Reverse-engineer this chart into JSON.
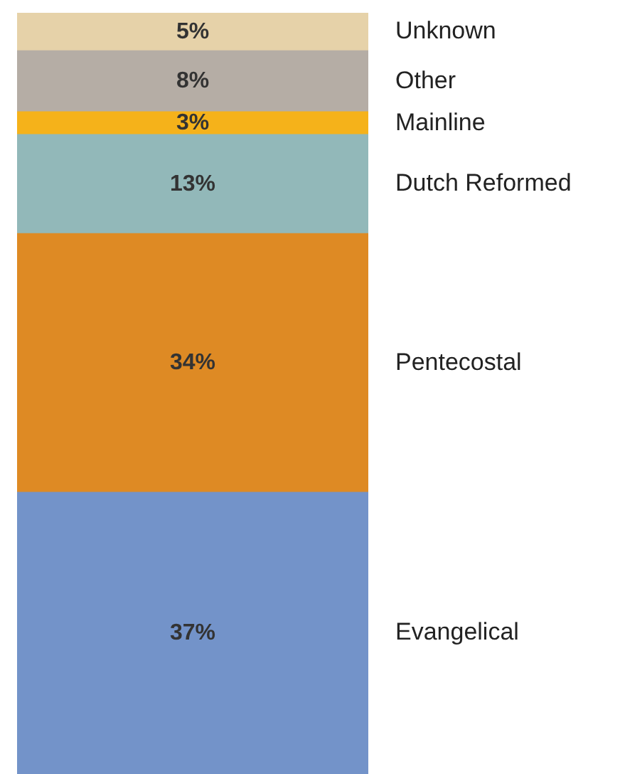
{
  "chart_data": {
    "type": "bar",
    "stacked": true,
    "categories": [
      null
    ],
    "series": [
      {
        "name": "Evangelical",
        "color": "#7393c9",
        "values": [
          37
        ],
        "value_labels": [
          "37%"
        ]
      },
      {
        "name": "Pentecostal",
        "color": "#de8a24",
        "values": [
          34
        ],
        "value_labels": [
          "34%"
        ]
      },
      {
        "name": "Dutch Reformed",
        "color": "#92b8b9",
        "values": [
          13
        ],
        "value_labels": [
          "13%"
        ]
      },
      {
        "name": "Mainline",
        "color": "#f5b21a",
        "values": [
          3
        ],
        "value_labels": [
          "3%"
        ]
      },
      {
        "name": "Other",
        "color": "#b5ada5",
        "values": [
          8
        ],
        "value_labels": [
          "8%"
        ]
      },
      {
        "name": "Unknown",
        "color": "#e6d2a9",
        "values": [
          5
        ],
        "value_labels": [
          "5%"
        ]
      }
    ]
  }
}
